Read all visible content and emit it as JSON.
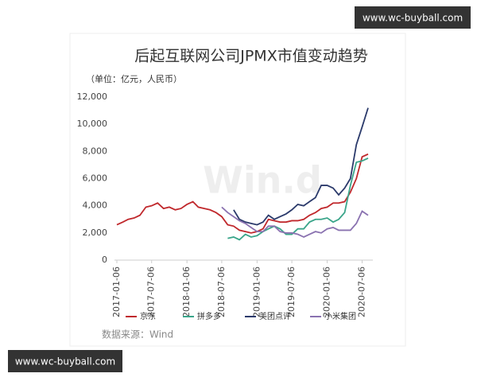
{
  "chart_data": {
    "type": "line",
    "title": "后起互联网公司JPMX市值变动趋势",
    "subtitle": "（单位：亿元，人民币）",
    "source": "数据来源：Wind",
    "watermarks": [
      "Win.d",
      "www.wc-buyball.com",
      "www.wc-buyball.com"
    ],
    "x": [
      "2017-01-06",
      "2017-02-06",
      "2017-03-06",
      "2017-04-06",
      "2017-05-06",
      "2017-06-06",
      "2017-07-06",
      "2017-08-06",
      "2017-09-06",
      "2017-10-06",
      "2017-11-06",
      "2017-12-06",
      "2018-01-06",
      "2018-02-06",
      "2018-03-06",
      "2018-04-06",
      "2018-05-06",
      "2018-06-06",
      "2018-07-06",
      "2018-08-06",
      "2018-09-06",
      "2018-10-06",
      "2018-11-06",
      "2018-12-06",
      "2019-01-06",
      "2019-02-06",
      "2019-03-06",
      "2019-04-06",
      "2019-05-06",
      "2019-06-06",
      "2019-07-06",
      "2019-08-06",
      "2019-09-06",
      "2019-10-06",
      "2019-11-06",
      "2019-12-06",
      "2020-01-06",
      "2020-02-06",
      "2020-03-06",
      "2020-04-06",
      "2020-05-06",
      "2020-06-06",
      "2020-07-06",
      "2020-08-06"
    ],
    "series": [
      {
        "name": "京东",
        "color": "#c0282c",
        "values": [
          2600,
          2800,
          3000,
          3100,
          3300,
          3900,
          4000,
          4200,
          3800,
          3900,
          3700,
          3800,
          4100,
          4300,
          3900,
          3800,
          3700,
          3500,
          3200,
          2600,
          2500,
          2200,
          2100,
          2000,
          2100,
          2300,
          3000,
          2900,
          2800,
          2800,
          2900,
          2900,
          3000,
          3300,
          3500,
          3800,
          3900,
          4200,
          4200,
          4300,
          5000,
          6000,
          7600,
          7800
        ]
      },
      {
        "name": "拼多多",
        "color": "#3aa58a",
        "values": [
          null,
          null,
          null,
          null,
          null,
          null,
          null,
          null,
          null,
          null,
          null,
          null,
          null,
          null,
          null,
          null,
          null,
          null,
          null,
          1600,
          1700,
          1500,
          1900,
          1700,
          1800,
          2100,
          2300,
          2500,
          2300,
          1900,
          1900,
          2300,
          2300,
          2800,
          3000,
          3000,
          3100,
          2800,
          3000,
          3500,
          5500,
          7200,
          7300,
          7500
        ]
      },
      {
        "name": "美团点评",
        "color": "#2b3a6b",
        "values": [
          null,
          null,
          null,
          null,
          null,
          null,
          null,
          null,
          null,
          null,
          null,
          null,
          null,
          null,
          null,
          null,
          null,
          null,
          null,
          null,
          3700,
          3000,
          2800,
          2700,
          2600,
          2800,
          3300,
          3000,
          3200,
          3400,
          3700,
          4100,
          4000,
          4300,
          4600,
          5500,
          5500,
          5300,
          4800,
          5300,
          6000,
          8500,
          9800,
          11200
        ]
      },
      {
        "name": "小米集团",
        "color": "#8a72b0",
        "values": [
          null,
          null,
          null,
          null,
          null,
          null,
          null,
          null,
          null,
          null,
          null,
          null,
          null,
          null,
          null,
          null,
          null,
          null,
          3900,
          3500,
          3200,
          2900,
          2700,
          2400,
          2100,
          2100,
          2500,
          2500,
          2100,
          2000,
          2000,
          1900,
          1700,
          1900,
          2100,
          2000,
          2300,
          2400,
          2200,
          2200,
          2200,
          2700,
          3600,
          3300
        ]
      }
    ],
    "xlim": [
      "2017-01-06",
      "2020-08-06"
    ],
    "xticks": [
      "2017-01-06",
      "2017-07-06",
      "2018-01-06",
      "2018-07-06",
      "2019-01-06",
      "2019-07-06",
      "2020-01-06",
      "2020-07-06"
    ],
    "ylim": [
      0,
      12000
    ],
    "yticks": [
      0,
      {
        "value": 2000,
        "label": "2,000"
      },
      {
        "value": 4000,
        "label": "4,000"
      },
      {
        "value": 6000,
        "label": "6,000"
      },
      {
        "value": 8000,
        "label": "8,000"
      },
      {
        "value": 10000,
        "label": "10,000"
      },
      {
        "value": 12000,
        "label": "12,000"
      }
    ]
  }
}
